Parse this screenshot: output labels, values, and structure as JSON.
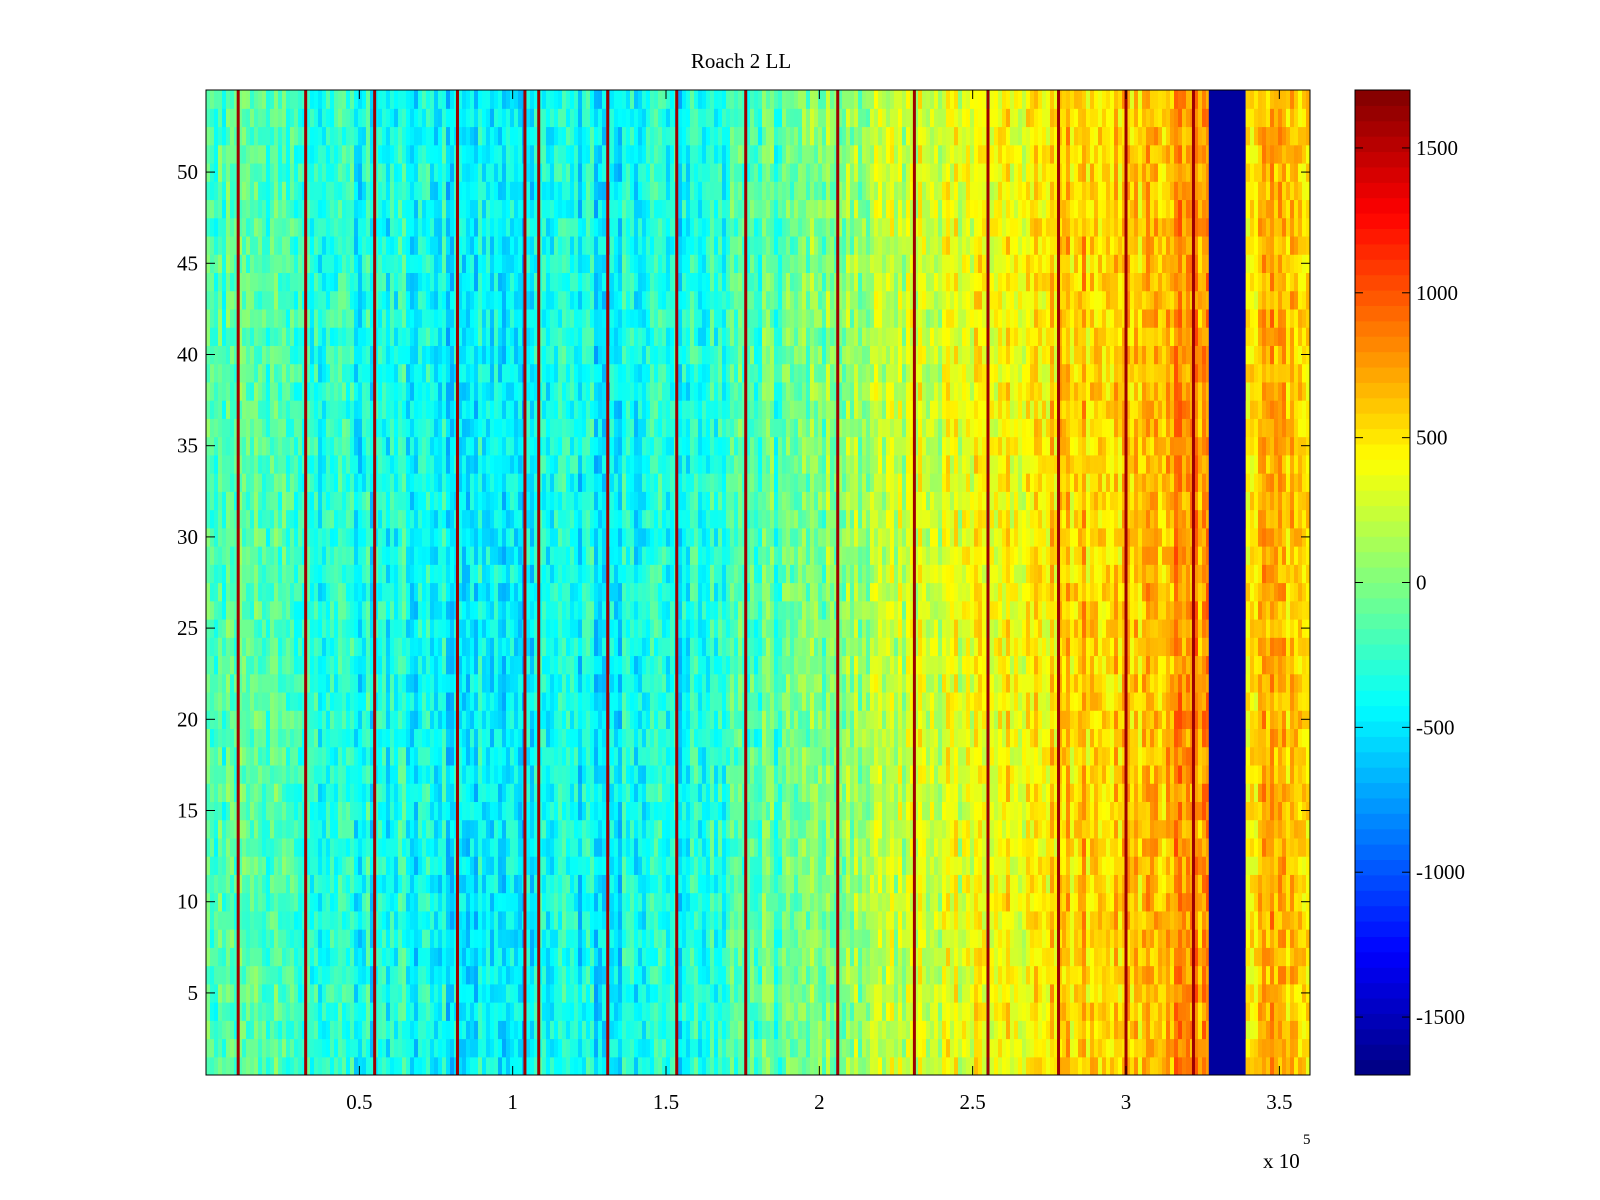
{
  "chart_data": {
    "type": "heatmap",
    "title": "Roach 2 LL",
    "xlabel": "",
    "ylabel": "",
    "xlim": [
      0,
      360000
    ],
    "ylim": [
      0.5,
      54.5
    ],
    "x_ticks": [
      50000,
      100000,
      150000,
      200000,
      250000,
      300000,
      350000
    ],
    "x_tick_labels": [
      "0.5",
      "1",
      "1.5",
      "2",
      "2.5",
      "3",
      "3.5"
    ],
    "x_multiplier_label": "x 10",
    "x_multiplier_exponent": "5",
    "y_ticks": [
      5,
      10,
      15,
      20,
      25,
      30,
      35,
      40,
      45,
      50
    ],
    "y_tick_labels": [
      "5",
      "10",
      "15",
      "20",
      "25",
      "30",
      "35",
      "40",
      "45",
      "50"
    ],
    "colorbar": {
      "colormap": "jet",
      "clim": [
        -1700,
        1700
      ],
      "ticks": [
        -1500,
        -1000,
        -500,
        0,
        500,
        1000,
        1500
      ],
      "tick_labels": [
        "-1500",
        "-1000",
        "-500",
        "0",
        "500",
        "1000",
        "1500"
      ]
    },
    "rows": 54,
    "background_trend": [
      {
        "x": 0,
        "value": -150
      },
      {
        "x": 40000,
        "value": -300
      },
      {
        "x": 90000,
        "value": -450
      },
      {
        "x": 150000,
        "value": -400
      },
      {
        "x": 190000,
        "value": -100
      },
      {
        "x": 230000,
        "value": 250
      },
      {
        "x": 280000,
        "value": 550
      },
      {
        "x": 325000,
        "value": 750
      },
      {
        "x": 340000,
        "value": 600
      },
      {
        "x": 360000,
        "value": 700
      }
    ],
    "gap_band": {
      "x_start": 327000,
      "x_end": 339000,
      "value": -1600
    },
    "spike_lines_x": [
      10500,
      32500,
      55000,
      82000,
      104000,
      108500,
      131000,
      153500,
      176000,
      206000,
      231000,
      255000,
      278000,
      300000,
      322000
    ],
    "spike_value": 1600,
    "grid": false,
    "legend": "none"
  }
}
